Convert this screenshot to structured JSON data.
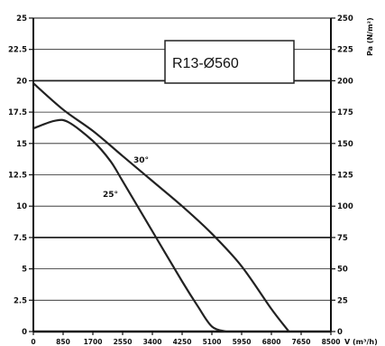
{
  "chart_data": {
    "type": "line",
    "title": "R13-Ø560",
    "xlabel": "V (m³/h)",
    "ylabel_left": "",
    "ylabel_right": "Pa (N/m²)",
    "xlim": [
      0,
      8500
    ],
    "ylim_left": [
      0,
      25
    ],
    "ylim_right": [
      0,
      250
    ],
    "grid": "horizontal-major",
    "x_ticks": [
      "0",
      "850",
      "1700",
      "2550",
      "3400",
      "4250",
      "5100",
      "5950",
      "6800",
      "7650",
      "8500"
    ],
    "y_ticks_left": [
      "0",
      "2.5",
      "5",
      "7.5",
      "10",
      "12.5",
      "15",
      "17.5",
      "20",
      "22.5",
      "25"
    ],
    "y_ticks_right": [
      "0",
      "25",
      "50",
      "75",
      "100",
      "125",
      "150",
      "175",
      "200",
      "225",
      "250"
    ],
    "series": [
      {
        "name": "30°",
        "label": "30°",
        "color": "#222222",
        "x": [
          0,
          850,
          1700,
          2550,
          3400,
          4250,
          5100,
          5950,
          6800,
          7300
        ],
        "y": [
          19.8,
          17.7,
          16.0,
          14.0,
          12.0,
          10.0,
          7.8,
          5.2,
          1.8,
          0
        ]
      },
      {
        "name": "25°",
        "label": "25°",
        "color": "#222222",
        "x": [
          0,
          600,
          1000,
          1700,
          2200,
          2550,
          3400,
          4250,
          4700,
          5100,
          5500
        ],
        "y": [
          16.2,
          16.8,
          16.7,
          15.2,
          13.6,
          12.0,
          8.0,
          4.0,
          2.0,
          0.4,
          0
        ]
      }
    ]
  }
}
